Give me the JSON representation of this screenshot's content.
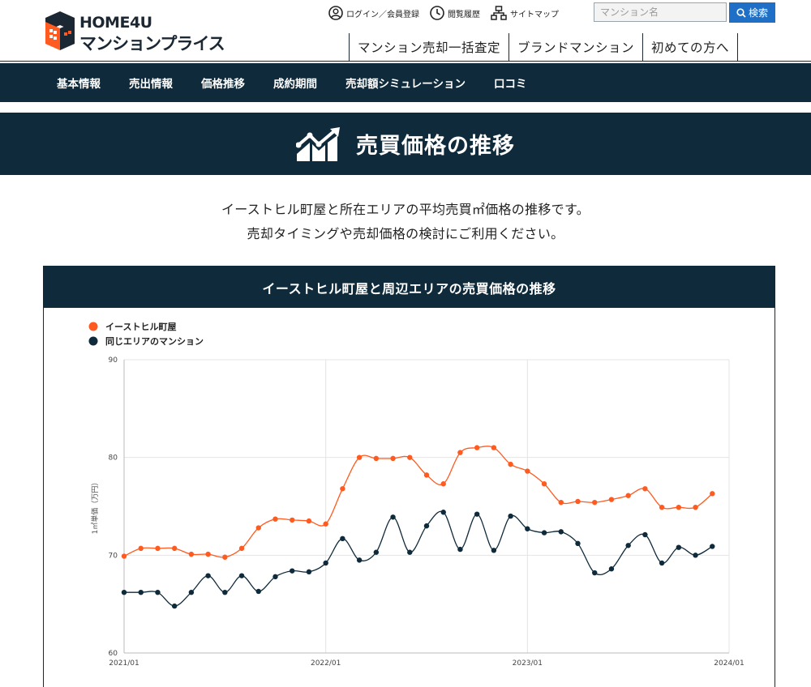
{
  "header": {
    "logo_top": "HOME4U",
    "logo_bottom": "マンションプライス",
    "util_links": [
      {
        "label": "ログイン／会員登録",
        "icon": "user-circle-icon"
      },
      {
        "label": "閲覧履歴",
        "icon": "clock-icon"
      },
      {
        "label": "サイトマップ",
        "icon": "sitemap-icon"
      }
    ],
    "search": {
      "placeholder": "マンション名",
      "button_label": "検索"
    },
    "top_links": [
      "マンション売却一括査定",
      "ブランドマンション",
      "初めての方へ"
    ]
  },
  "nav": {
    "items": [
      "基本情報",
      "売出情報",
      "価格推移",
      "成約期間",
      "売却額シミュレーション",
      "口コミ"
    ]
  },
  "section": {
    "title": "売買価格の推移",
    "intro_line1": "イーストヒル町屋と所在エリアの平均売買㎡価格の推移です。",
    "intro_line2": "売却タイミングや売却価格の検討にご利用ください。"
  },
  "chart_card": {
    "title": "イーストヒル町屋と周辺エリアの売買価格の推移"
  },
  "colors": {
    "navy": "#0f2a3b",
    "orange": "#ff5a1f",
    "search_blue": "#1e6fc5"
  },
  "chart_data": {
    "type": "line",
    "title": "イーストヒル町屋と周辺エリアの売買価格の推移",
    "ylabel": "1㎡単価（万円）",
    "ylim": [
      60,
      90
    ],
    "yticks": [
      60,
      70,
      80,
      90
    ],
    "xlim": [
      "2021-01",
      "2024-01"
    ],
    "xticks": [
      "2021/01",
      "2022/01",
      "2023/01",
      "2024/01"
    ],
    "legend_position": "top-left",
    "grid": true,
    "x": [
      "2021-01",
      "2021-02",
      "2021-03",
      "2021-04",
      "2021-05",
      "2021-06",
      "2021-07",
      "2021-08",
      "2021-09",
      "2021-10",
      "2021-11",
      "2021-12",
      "2022-01",
      "2022-02",
      "2022-03",
      "2022-04",
      "2022-05",
      "2022-06",
      "2022-07",
      "2022-08",
      "2022-09",
      "2022-10",
      "2022-11",
      "2022-12",
      "2023-01",
      "2023-02",
      "2023-03",
      "2023-04",
      "2023-05",
      "2023-06",
      "2023-07",
      "2023-08",
      "2023-09",
      "2023-10",
      "2023-11",
      "2023-12"
    ],
    "series": [
      {
        "name": "イーストヒル町屋",
        "color": "#ff5a1f",
        "values": [
          69.9,
          70.7,
          70.7,
          70.7,
          70.1,
          70.1,
          69.8,
          70.7,
          72.8,
          73.7,
          73.6,
          73.5,
          73.2,
          76.8,
          80.0,
          79.9,
          79.9,
          80.0,
          78.2,
          77.3,
          80.5,
          81.0,
          81.0,
          79.3,
          78.6,
          77.3,
          75.4,
          75.5,
          75.4,
          75.7,
          76.1,
          76.8,
          74.9,
          74.9,
          74.9,
          76.3
        ]
      },
      {
        "name": "同じエリアのマンション",
        "color": "#0f2a3b",
        "values": [
          66.2,
          66.2,
          66.2,
          64.8,
          66.2,
          67.9,
          66.2,
          67.9,
          66.3,
          67.8,
          68.4,
          68.3,
          69.2,
          71.7,
          69.5,
          70.3,
          73.9,
          70.3,
          73.0,
          74.4,
          70.6,
          74.2,
          70.5,
          74.0,
          72.7,
          72.3,
          72.4,
          71.2,
          68.2,
          68.6,
          71.0,
          72.1,
          69.2,
          70.8,
          70.0,
          70.9
        ]
      }
    ]
  }
}
